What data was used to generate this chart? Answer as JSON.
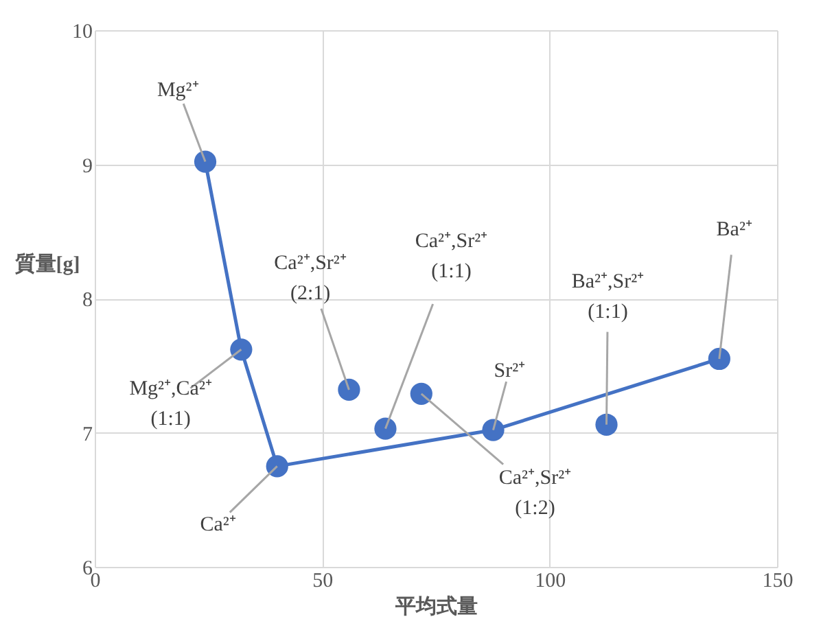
{
  "chart_data": {
    "type": "scatter",
    "xlabel": "平均式量",
    "ylabel": "質量[g]",
    "series": [
      {
        "type": "line",
        "color": "#4472c4",
        "x": [
          24.3,
          32.2,
          40.1,
          87.6,
          137.3
        ],
        "values": [
          9.02,
          7.62,
          6.75,
          7.02,
          7.55
        ]
      },
      {
        "color": "#4472c4",
        "x": [
          55.9,
          63.9,
          71.8,
          112.5
        ],
        "values": [
          7.32,
          7.03,
          7.29,
          7.06
        ]
      }
    ],
    "annotations": [
      {
        "text": "Mg²⁺",
        "x": 24.3,
        "y": 9.02
      },
      {
        "text": "Mg²⁺,Ca²⁺\n(1:1)",
        "x": 32.2,
        "y": 7.62
      },
      {
        "text": "Ca²⁺",
        "x": 40.1,
        "y": 6.75
      },
      {
        "text": "Ca²⁺,Sr²⁺\n(2:1)",
        "x": 55.9,
        "y": 7.32
      },
      {
        "text": "Ca²⁺,Sr²⁺\n(1:1)",
        "x": 63.9,
        "y": 7.03
      },
      {
        "text": "Ca²⁺,Sr²⁺\n(1:2)",
        "x": 71.8,
        "y": 7.29
      },
      {
        "text": "Sr²⁺",
        "x": 87.6,
        "y": 7.02
      },
      {
        "text": "Ba²⁺,Sr²⁺\n(1:1)",
        "x": 112.5,
        "y": 7.06
      },
      {
        "text": "Ba²⁺",
        "x": 137.3,
        "y": 7.55
      }
    ],
    "xlim": [
      0,
      150
    ],
    "xticks": [
      0,
      50,
      100,
      150
    ],
    "ylim": [
      6,
      10
    ],
    "yticks": [
      6,
      7,
      8,
      9,
      10
    ],
    "grid": true,
    "marker": "circle",
    "legend": false
  }
}
